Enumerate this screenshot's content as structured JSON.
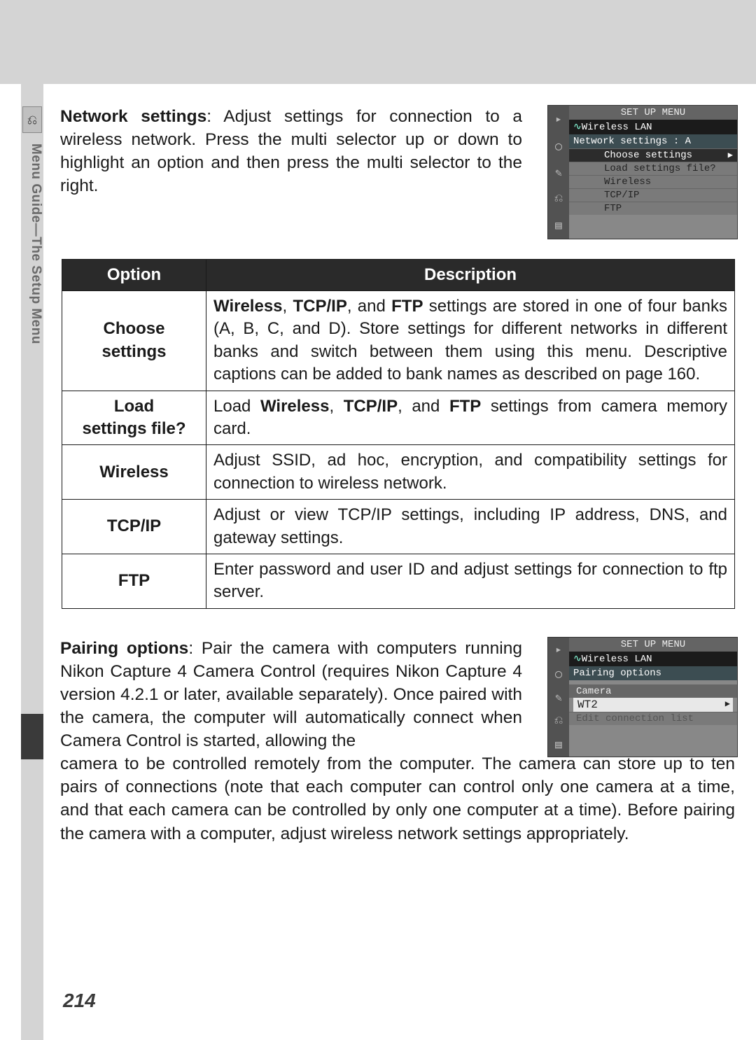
{
  "sidebar": {
    "label": "Menu Guide—The Setup Menu",
    "icon_glyph": "⎌"
  },
  "para_network": {
    "lead_bold": "Network settings",
    "text": ": Adjust settings for connection to a wireless network.  Press the multi selector up or down to highlight an option and then press the multi selector to the right."
  },
  "lcd1": {
    "title": "SET UP MENU",
    "header": "Wireless LAN",
    "sub": "Network settings : A",
    "rows": [
      {
        "label": "Choose settings",
        "selected": true
      },
      {
        "label": "Load settings file?",
        "selected": false
      },
      {
        "label": "Wireless",
        "selected": false
      },
      {
        "label": "TCP/IP",
        "selected": false
      },
      {
        "label": "FTP",
        "selected": false
      }
    ],
    "left_icons": [
      "▸",
      "◯",
      "✎",
      "⎌",
      "▤"
    ]
  },
  "table": {
    "headers": {
      "option": "Option",
      "description": "Description"
    },
    "rows": [
      {
        "option": "Choose settings",
        "desc_html": "<span class='bold'>Wireless</span>, <span class='bold'>TCP/IP</span>, and <span class='bold'>FTP</span> settings are stored in one of four banks (A, B, C, and D).  Store settings for different networks in different banks and switch between them using this menu.  Descriptive captions can be added to bank names as described on page 160."
      },
      {
        "option": "Load settings file?",
        "desc_html": "Load <span class='bold'>Wireless</span>, <span class='bold'>TCP/IP</span>, and <span class='bold'>FTP</span> settings from camera memory card."
      },
      {
        "option": "Wireless",
        "desc_html": "Adjust SSID, ad hoc, encryption, and compatibility settings for connection to wireless network."
      },
      {
        "option": "TCP/IP",
        "desc_html": "Adjust or view TCP/IP settings, including IP address, DNS, and gateway settings."
      },
      {
        "option": "FTP",
        "desc_html": "Enter password and user ID and adjust settings for connection to ftp server."
      }
    ]
  },
  "para_pairing": {
    "lead_bold": "Pairing options",
    "part1": ": Pair the camera with computers running Nikon Capture 4 Camera Control (requires Nikon Capture 4 version 4.2.1 or later, available separately).  Once paired with the camera, the computer will automatically connect when Camera Control is started, allowing the ",
    "part2": "camera to be controlled remotely from the computer.  The camera can store up to ten pairs of connections (note that each computer can control only one camera at a time, and that each camera can be controlled by only one computer at a time).  Before pairing the camera with a computer, adjust wireless network settings appropriately."
  },
  "lcd2": {
    "title": "SET UP MENU",
    "header": "Wireless LAN",
    "sub": "Pairing options",
    "camera_label": "Camera",
    "input_value": "WT2",
    "dim_row": "Edit connection list",
    "left_icons": [
      "▸",
      "◯",
      "✎",
      "⎌",
      "▤"
    ]
  },
  "page_number": "214",
  "colors": {
    "top_gray": "#d4d4d4",
    "side_gray": "#d4d4d4",
    "table_header_bg": "#2a2a2a",
    "table_header_fg": "#ffffff",
    "border": "#1a1a1a",
    "lcd_bg": "#888888"
  }
}
